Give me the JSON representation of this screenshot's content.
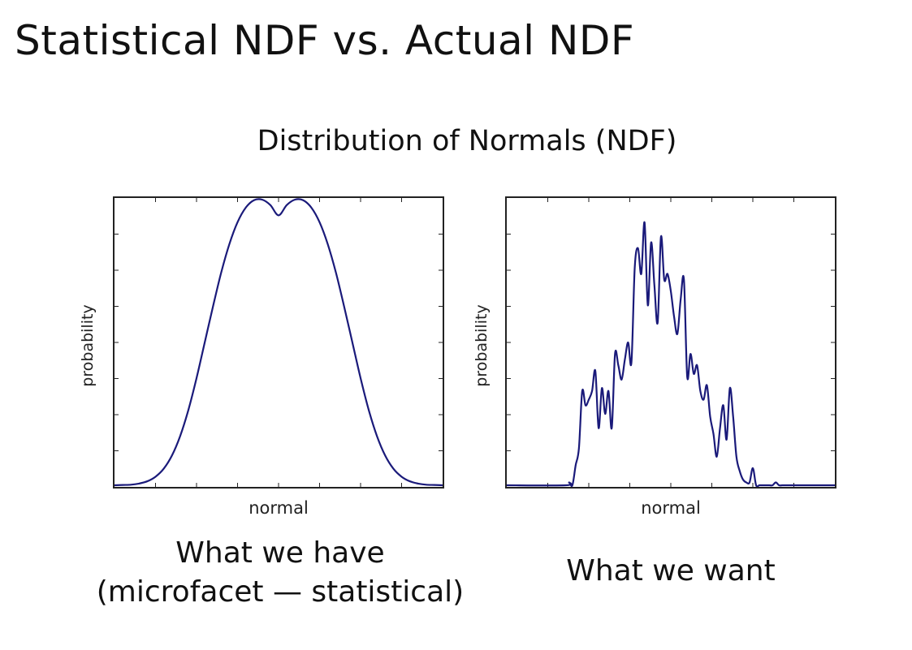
{
  "slide": {
    "title": "Statistical NDF vs. Actual NDF",
    "subtitle": "Distribution of Normals (NDF)"
  },
  "chart_data": [
    {
      "type": "line",
      "xlabel": "normal",
      "ylabel": "probability",
      "caption_line1": "What we have",
      "caption_line2": "(microfacet — statistical)",
      "line_color": "#1a1a7a",
      "grid": false,
      "tick_labels_shown": false,
      "xlim": [
        0,
        1
      ],
      "ylim": [
        0,
        1
      ],
      "x": [
        0.0,
        0.025,
        0.05,
        0.075,
        0.1,
        0.125,
        0.15,
        0.175,
        0.2,
        0.225,
        0.25,
        0.275,
        0.3,
        0.325,
        0.35,
        0.375,
        0.4,
        0.425,
        0.45,
        0.475,
        0.5,
        0.525,
        0.55,
        0.575,
        0.6,
        0.625,
        0.65,
        0.675,
        0.7,
        0.725,
        0.75,
        0.775,
        0.8,
        0.825,
        0.85,
        0.875,
        0.9,
        0.925,
        0.95,
        0.975,
        1.0
      ],
      "y": [
        0.0,
        0.001,
        0.002,
        0.006,
        0.014,
        0.03,
        0.058,
        0.104,
        0.172,
        0.263,
        0.375,
        0.5,
        0.625,
        0.744,
        0.844,
        0.921,
        0.972,
        0.998,
        1.0,
        0.981,
        0.945,
        0.981,
        1.0,
        0.998,
        0.972,
        0.921,
        0.844,
        0.744,
        0.625,
        0.5,
        0.375,
        0.263,
        0.172,
        0.104,
        0.058,
        0.03,
        0.014,
        0.006,
        0.002,
        0.001,
        0.0
      ]
    },
    {
      "type": "line",
      "xlabel": "normal",
      "ylabel": "probability",
      "caption_line1": "What we want",
      "line_color": "#1a1a7a",
      "grid": false,
      "tick_labels_shown": false,
      "xlim": [
        0,
        1
      ],
      "ylim": [
        0,
        1
      ],
      "x": [
        0.0,
        0.18,
        0.19,
        0.2,
        0.21,
        0.22,
        0.23,
        0.24,
        0.25,
        0.26,
        0.27,
        0.28,
        0.29,
        0.3,
        0.31,
        0.32,
        0.33,
        0.34,
        0.35,
        0.36,
        0.37,
        0.38,
        0.39,
        0.4,
        0.41,
        0.42,
        0.43,
        0.44,
        0.45,
        0.46,
        0.47,
        0.48,
        0.49,
        0.5,
        0.51,
        0.52,
        0.53,
        0.54,
        0.55,
        0.56,
        0.57,
        0.58,
        0.59,
        0.6,
        0.61,
        0.62,
        0.63,
        0.64,
        0.65,
        0.66,
        0.67,
        0.68,
        0.69,
        0.7,
        0.71,
        0.72,
        0.73,
        0.74,
        0.75,
        0.76,
        0.77,
        0.78,
        0.79,
        0.8,
        0.81,
        0.82,
        0.83,
        0.84,
        0.85,
        0.86,
        0.88,
        0.9,
        0.92,
        1.0
      ],
      "y": [
        0.0,
        0.0,
        0.01,
        0.0,
        0.07,
        0.13,
        0.33,
        0.28,
        0.3,
        0.33,
        0.4,
        0.2,
        0.34,
        0.25,
        0.33,
        0.2,
        0.46,
        0.42,
        0.37,
        0.44,
        0.5,
        0.43,
        0.76,
        0.83,
        0.74,
        0.92,
        0.63,
        0.85,
        0.7,
        0.57,
        0.87,
        0.72,
        0.74,
        0.68,
        0.59,
        0.53,
        0.65,
        0.72,
        0.38,
        0.46,
        0.39,
        0.42,
        0.33,
        0.3,
        0.35,
        0.24,
        0.18,
        0.1,
        0.2,
        0.28,
        0.16,
        0.34,
        0.24,
        0.1,
        0.05,
        0.02,
        0.01,
        0.01,
        0.06,
        0.0,
        0.0,
        0.0,
        0.0,
        0.0,
        0.0,
        0.01,
        0.0,
        0.0,
        0.0,
        0.0,
        0.0,
        0.0,
        0.0,
        0.0
      ]
    }
  ]
}
